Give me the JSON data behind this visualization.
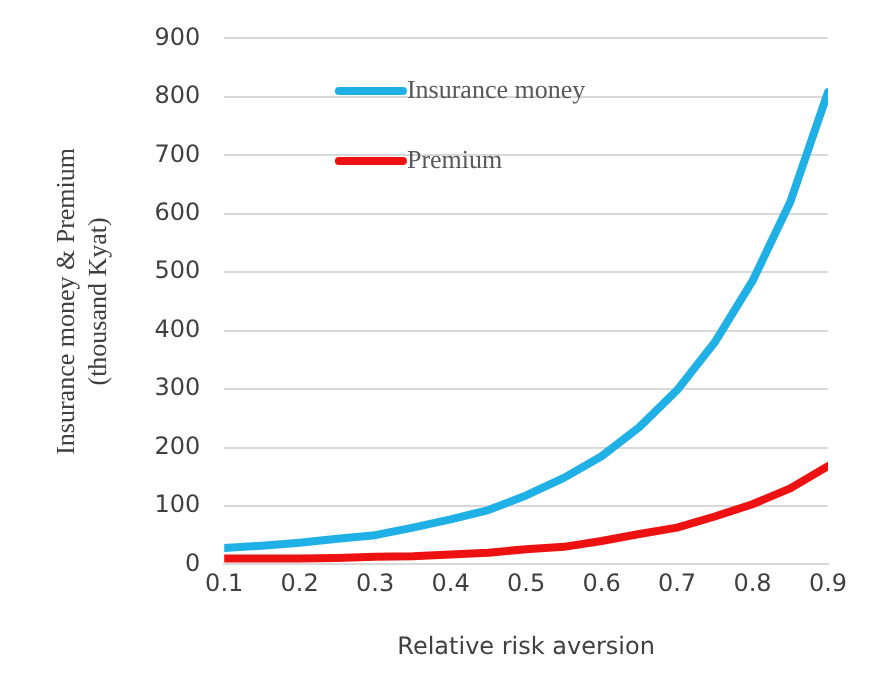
{
  "chart_data": {
    "type": "line",
    "xlabel": "Relative risk aversion",
    "ylabel": "Insurance money & Premium\n(thousand Kyat)",
    "x": [
      0.1,
      0.15,
      0.2,
      0.25,
      0.3,
      0.35,
      0.4,
      0.45,
      0.5,
      0.55,
      0.6,
      0.65,
      0.7,
      0.75,
      0.8,
      0.85,
      0.9
    ],
    "series": [
      {
        "name": "Insurance money",
        "color": "#1fb0e6",
        "values": [
          28,
          32,
          37,
          44,
          50,
          63,
          77,
          93,
          118,
          148,
          185,
          235,
          298,
          380,
          485,
          620,
          808
        ]
      },
      {
        "name": "Premium",
        "color": "#ee1111",
        "values": [
          10,
          10,
          10,
          11,
          13,
          14,
          17,
          20,
          26,
          30,
          40,
          52,
          63,
          82,
          103,
          130,
          168
        ]
      }
    ],
    "xlim": [
      0.1,
      0.9
    ],
    "xticks": [
      0.1,
      0.2,
      0.3,
      0.4,
      0.5,
      0.6,
      0.7,
      0.8,
      0.9
    ],
    "ylim": [
      0,
      900
    ],
    "yticks": [
      0,
      100,
      200,
      300,
      400,
      500,
      600,
      700,
      800,
      900
    ],
    "grid": "y",
    "legend": "top left",
    "marker": "none",
    "line_style": "solid"
  }
}
